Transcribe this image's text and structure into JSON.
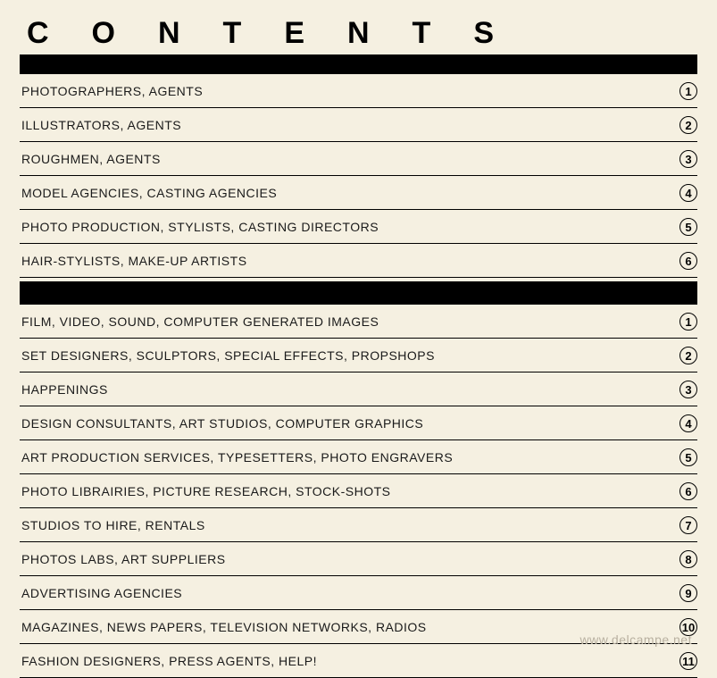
{
  "title": "CONTENTS",
  "section1": [
    {
      "label": "PHOTOGRAPHERS, AGENTS",
      "num": "1"
    },
    {
      "label": "ILLUSTRATORS, AGENTS",
      "num": "2"
    },
    {
      "label": "ROUGHMEN, AGENTS",
      "num": "3"
    },
    {
      "label": "MODEL AGENCIES, CASTING AGENCIES",
      "num": "4"
    },
    {
      "label": "PHOTO PRODUCTION, STYLISTS, CASTING DIRECTORS",
      "num": "5"
    },
    {
      "label": "HAIR-STYLISTS, MAKE-UP ARTISTS",
      "num": "6"
    }
  ],
  "section2": [
    {
      "label": "FILM, VIDEO, SOUND, COMPUTER GENERATED IMAGES",
      "num": "1"
    },
    {
      "label": "SET DESIGNERS, SCULPTORS, SPECIAL EFFECTS, PROPSHOPS",
      "num": "2"
    },
    {
      "label": "HAPPENINGS",
      "num": "3"
    },
    {
      "label": "DESIGN CONSULTANTS, ART STUDIOS, COMPUTER GRAPHICS",
      "num": "4"
    },
    {
      "label": "ART PRODUCTION SERVICES, TYPESETTERS, PHOTO ENGRAVERS",
      "num": "5"
    },
    {
      "label": "PHOTO LIBRAIRIES, PICTURE RESEARCH, STOCK-SHOTS",
      "num": "6"
    },
    {
      "label": "STUDIOS TO HIRE, RENTALS",
      "num": "7"
    },
    {
      "label": "PHOTOS LABS, ART SUPPLIERS",
      "num": "8"
    },
    {
      "label": "ADVERTISING AGENCIES",
      "num": "9"
    },
    {
      "label": "MAGAZINES, NEWS PAPERS, TELEVISION NETWORKS, RADIOS",
      "num": "10"
    },
    {
      "label": "FASHION DESIGNERS, PRESS AGENTS, HELP!",
      "num": "11"
    }
  ],
  "watermark": "www.delcampe.net",
  "colors": {
    "background": "#f5f0e1",
    "text": "#1a1a1a",
    "bar": "#000000",
    "watermark": "#b8b0a0"
  },
  "typography": {
    "title_fontsize": 34,
    "title_weight": 900,
    "title_letterspacing": 48,
    "row_fontsize": 14,
    "row_weight": 500,
    "number_fontsize": 13
  },
  "layout": {
    "thick_bar_height": 22,
    "section_gap_height": 26,
    "row_padding_y": 9,
    "circle_diameter": 20,
    "circle_border": 1.5
  }
}
